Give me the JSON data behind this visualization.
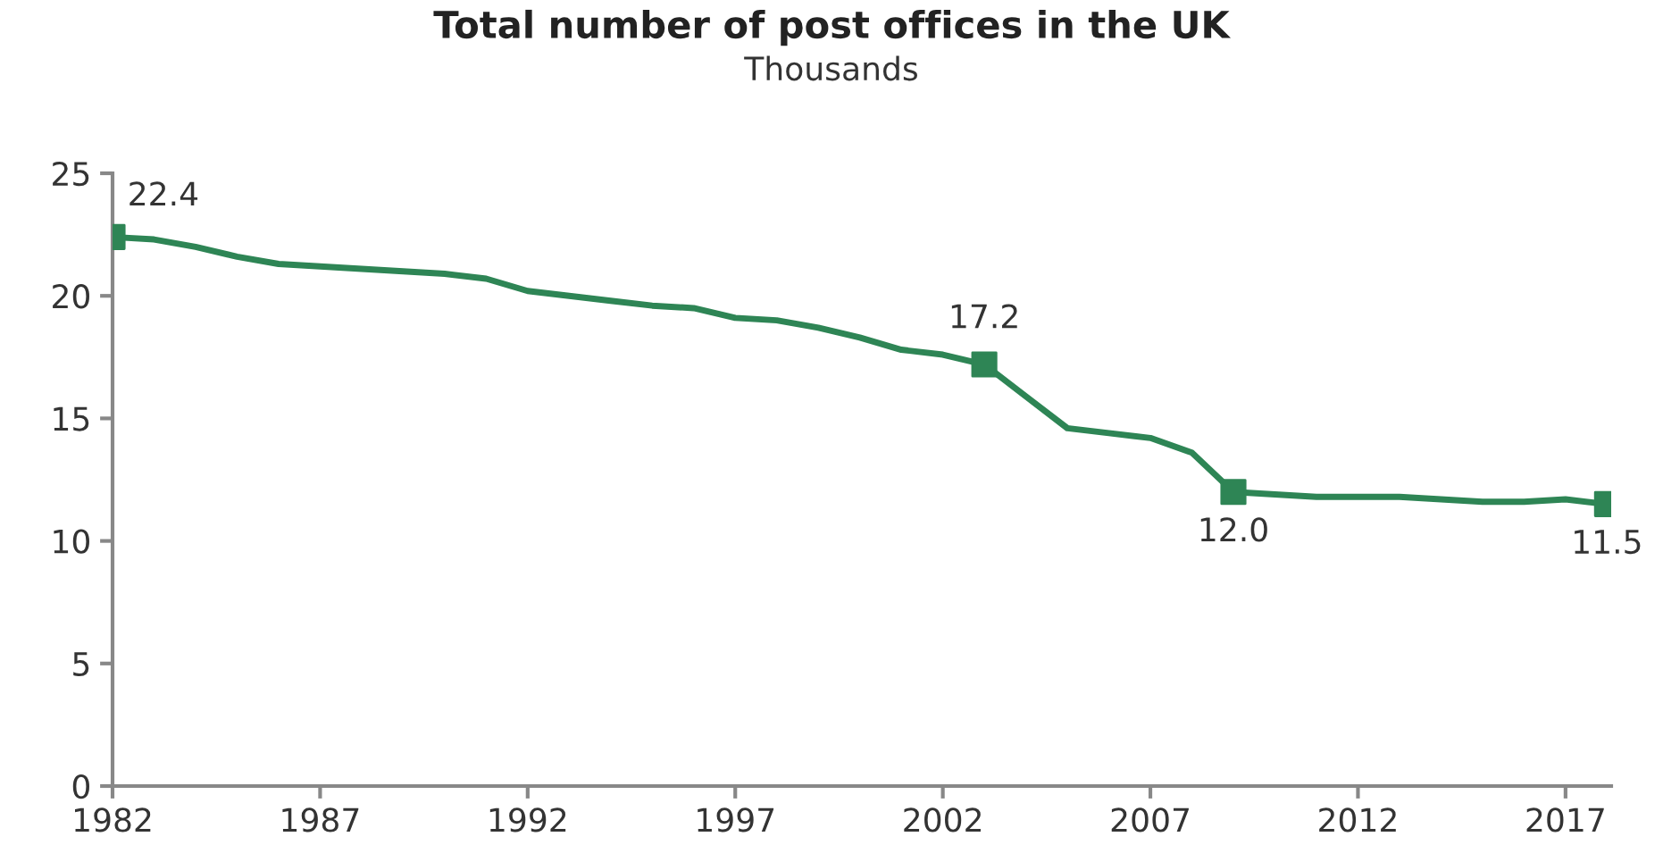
{
  "chart_data": {
    "type": "line",
    "title": "Total number of post offices in the UK",
    "subtitle": "Thousands",
    "xlim": [
      1982,
      2018.1
    ],
    "xticks": [
      1982,
      1987,
      1992,
      1997,
      2002,
      2007,
      2012,
      2017
    ],
    "ylim": [
      0,
      25
    ],
    "yticks": [
      0,
      5,
      10,
      15,
      20,
      25
    ],
    "grid": false,
    "legend": false,
    "series": [
      {
        "color": "#2e8555",
        "marker": "none",
        "x": [
          1982,
          1983,
          1984,
          1985,
          1986,
          1987,
          1988,
          1989,
          1990,
          1991,
          1992,
          1993,
          1994,
          1995,
          1996,
          1997,
          1998,
          1999,
          2000,
          2001,
          2002,
          2003,
          2004,
          2005,
          2006,
          2007,
          2008,
          2009,
          2010,
          2011,
          2012,
          2013,
          2014,
          2015,
          2016,
          2017,
          2018
        ],
        "values": [
          22.4,
          22.3,
          22.0,
          21.6,
          21.3,
          21.2,
          21.1,
          21.0,
          20.9,
          20.7,
          20.2,
          20.0,
          19.8,
          19.6,
          19.5,
          19.1,
          19.0,
          18.7,
          18.3,
          17.8,
          17.6,
          17.2,
          15.9,
          14.6,
          14.4,
          14.2,
          13.6,
          12.0,
          11.9,
          11.8,
          11.8,
          11.8,
          11.7,
          11.6,
          11.6,
          11.7,
          11.5
        ]
      },
      {
        "type": "scatter",
        "color": "#2e8555",
        "marker": "square",
        "x": [
          1982,
          2003,
          2009,
          2018
        ],
        "values": [
          22.4,
          17.2,
          12.0,
          11.5
        ],
        "value_labels": [
          "22.4",
          "17.2",
          "12.0",
          "11.5"
        ]
      }
    ]
  }
}
